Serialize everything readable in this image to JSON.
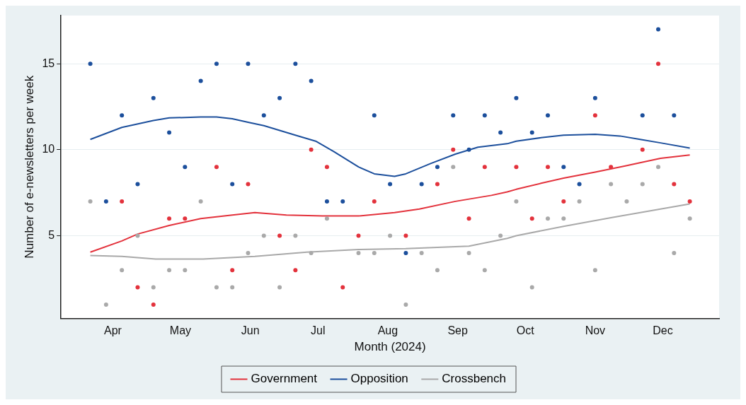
{
  "chart_data": {
    "type": "scatter",
    "xlabel": "Month (2024)",
    "ylabel": "Number of e-newsletters per week",
    "x": [
      "2024-03-22",
      "2024-03-29",
      "2024-04-05",
      "2024-04-12",
      "2024-04-19",
      "2024-04-26",
      "2024-05-03",
      "2024-05-10",
      "2024-05-17",
      "2024-05-24",
      "2024-05-31",
      "2024-06-07",
      "2024-06-14",
      "2024-06-21",
      "2024-06-28",
      "2024-07-05",
      "2024-07-12",
      "2024-07-19",
      "2024-07-26",
      "2024-08-02",
      "2024-08-09",
      "2024-08-16",
      "2024-08-23",
      "2024-08-30",
      "2024-09-06",
      "2024-09-13",
      "2024-09-20",
      "2024-09-27",
      "2024-10-04",
      "2024-10-11",
      "2024-10-18",
      "2024-10-25",
      "2024-11-01",
      "2024-11-08",
      "2024-11-15",
      "2024-11-22",
      "2024-11-29",
      "2024-12-06",
      "2024-12-13"
    ],
    "series": [
      {
        "name": "Government",
        "color": "#e3323c",
        "marker": "circle",
        "values": [
          null,
          null,
          7,
          2,
          1,
          6,
          6,
          null,
          9,
          3,
          8,
          null,
          5,
          3,
          10,
          9,
          2,
          5,
          7,
          null,
          5,
          null,
          8,
          10,
          6,
          9,
          null,
          9,
          6,
          9,
          7,
          null,
          12,
          9,
          null,
          10,
          15,
          8,
          7
        ]
      },
      {
        "name": "Opposition",
        "color": "#1c4f9c",
        "marker": "circle",
        "values": [
          15,
          7,
          12,
          8,
          13,
          11,
          9,
          14,
          15,
          8,
          15,
          12,
          13,
          15,
          14,
          7,
          7,
          null,
          12,
          8,
          4,
          8,
          9,
          12,
          10,
          12,
          11,
          13,
          11,
          12,
          9,
          8,
          13,
          null,
          null,
          12,
          17,
          12,
          null
        ]
      },
      {
        "name": "Crossbench",
        "color": "#a9a9a9",
        "marker": "circle",
        "values": [
          7,
          1,
          3,
          5,
          2,
          3,
          3,
          7,
          2,
          2,
          4,
          5,
          2,
          5,
          4,
          6,
          null,
          4,
          4,
          5,
          1,
          4,
          3,
          9,
          4,
          3,
          5,
          7,
          2,
          6,
          6,
          7,
          3,
          8,
          7,
          8,
          9,
          4,
          6
        ]
      },
      {
        "type": "line",
        "color": "#e3323c",
        "marker": "none",
        "x": [
          "2024-03-22",
          "2024-04-05",
          "2024-04-12",
          "2024-04-26",
          "2024-05-10",
          "2024-05-24",
          "2024-06-03",
          "2024-06-17",
          "2024-07-03",
          "2024-07-19",
          "2024-08-04",
          "2024-08-15",
          "2024-08-31",
          "2024-09-16",
          "2024-09-23",
          "2024-09-27",
          "2024-10-08",
          "2024-10-18",
          "2024-11-01",
          "2024-11-14",
          "2024-11-30",
          "2024-12-13"
        ],
        "values": [
          4.05,
          4.7,
          5.1,
          5.6,
          6.0,
          6.2,
          6.35,
          6.2,
          6.15,
          6.15,
          6.35,
          6.55,
          7.0,
          7.35,
          7.55,
          7.7,
          8.05,
          8.35,
          8.7,
          9.05,
          9.5,
          9.7
        ]
      },
      {
        "type": "line",
        "color": "#1c4f9c",
        "marker": "none",
        "x": [
          "2024-03-22",
          "2024-04-05",
          "2024-04-19",
          "2024-04-26",
          "2024-05-10",
          "2024-05-17",
          "2024-05-24",
          "2024-05-31",
          "2024-06-07",
          "2024-06-21",
          "2024-06-30",
          "2024-07-08",
          "2024-07-19",
          "2024-07-26",
          "2024-08-04",
          "2024-08-09",
          "2024-08-20",
          "2024-08-31",
          "2024-09-10",
          "2024-09-23",
          "2024-09-27",
          "2024-10-08",
          "2024-10-18",
          "2024-11-01",
          "2024-11-12",
          "2024-11-21",
          "2024-11-30",
          "2024-12-13"
        ],
        "values": [
          10.6,
          11.3,
          11.7,
          11.85,
          11.9,
          11.9,
          11.8,
          11.6,
          11.4,
          10.85,
          10.5,
          9.9,
          9.0,
          8.6,
          8.45,
          8.6,
          9.2,
          9.75,
          10.15,
          10.35,
          10.5,
          10.7,
          10.85,
          10.9,
          10.8,
          10.6,
          10.4,
          10.1
        ]
      },
      {
        "type": "line",
        "color": "#a9a9a9",
        "marker": "none",
        "x": [
          "2024-03-22",
          "2024-04-05",
          "2024-04-20",
          "2024-05-11",
          "2024-06-03",
          "2024-06-26",
          "2024-07-19",
          "2024-08-09",
          "2024-09-06",
          "2024-09-23",
          "2024-09-27",
          "2024-10-18",
          "2024-11-08",
          "2024-11-30",
          "2024-12-13"
        ],
        "values": [
          3.85,
          3.8,
          3.65,
          3.65,
          3.8,
          4.05,
          4.2,
          4.25,
          4.4,
          4.85,
          5.0,
          5.55,
          6.05,
          6.55,
          6.85
        ]
      }
    ],
    "xlim": [
      "2024-03-09",
      "2024-12-26"
    ],
    "xticks": [
      {
        "value": "2024-04-01",
        "label": "Apr"
      },
      {
        "value": "2024-05-01",
        "label": "May"
      },
      {
        "value": "2024-06-01",
        "label": "Jun"
      },
      {
        "value": "2024-07-01",
        "label": "Jul"
      },
      {
        "value": "2024-08-01",
        "label": "Aug"
      },
      {
        "value": "2024-09-01",
        "label": "Sep"
      },
      {
        "value": "2024-10-01",
        "label": "Oct"
      },
      {
        "value": "2024-11-01",
        "label": "Nov"
      },
      {
        "value": "2024-12-01",
        "label": "Dec"
      }
    ],
    "ylim": [
      0.2,
      17.8
    ],
    "yticks": [
      5,
      10,
      15
    ],
    "grid": "y",
    "legend": "bottom"
  }
}
